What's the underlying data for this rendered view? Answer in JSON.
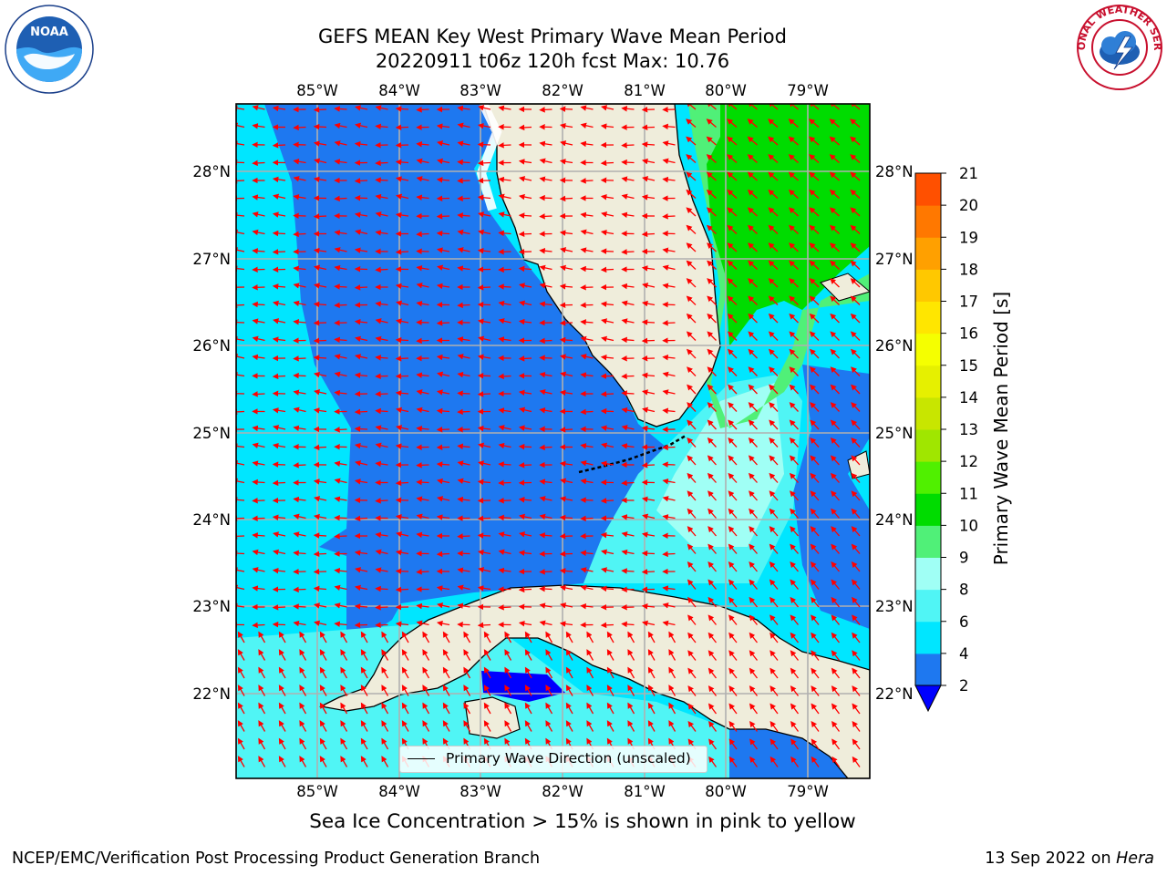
{
  "title": {
    "line1": "GEFS MEAN Key West Primary Wave Mean Period",
    "line2": "20220911 t06z 120h fcst   Max: 10.76"
  },
  "map": {
    "lon_labels": [
      "85°W",
      "84°W",
      "83°W",
      "82°W",
      "81°W",
      "80°W",
      "79°W"
    ],
    "lat_labels": [
      "28°N",
      "27°N",
      "26°N",
      "25°N",
      "24°N",
      "23°N",
      "22°N"
    ],
    "lon_range": [
      -86.0,
      -78.25
    ],
    "lat_range": [
      21.05,
      28.78
    ],
    "colors": {
      "land": "#EFEDDB",
      "band_2_4": "#1E78F0",
      "band_4_6": "#00E6FF",
      "band_6_8": "#50F5F5",
      "band_8_9": "#A0FFF5",
      "band_9_10": "#50F078",
      "band_10_11": "#00DC00",
      "band_lt_2": "#0000FF",
      "arrow": "#FF0000",
      "grid": "#B0B0B0"
    },
    "field_description": "Primary Wave Mean Period",
    "arrow_direction": "Primary Wave Direction (unscaled)"
  },
  "legend": {
    "label": "Primary Wave Direction (unscaled)"
  },
  "colorbar": {
    "label": "Primary Wave Mean Period [s]",
    "ticks": [
      "2",
      "4",
      "6",
      "8",
      "9",
      "10",
      "11",
      "12",
      "13",
      "14",
      "15",
      "16",
      "17",
      "18",
      "19",
      "20",
      "21"
    ],
    "colors": [
      "#1E78F0",
      "#00E6FF",
      "#50F5F5",
      "#A0FFF5",
      "#50F078",
      "#00DC00",
      "#50F000",
      "#A0E600",
      "#C8E600",
      "#E6F000",
      "#F5FF00",
      "#FFE600",
      "#FFC800",
      "#FFA000",
      "#FF7800",
      "#FF5000",
      "#FF1E00"
    ],
    "extend_color": "#0000FF"
  },
  "footer": {
    "sea_ice_note": "Sea Ice Concentration > 15% is shown in pink to yellow",
    "left": "NCEP/EMC/Verification Post Processing Product Generation Branch",
    "right_date": "13 Sep 2022 on",
    "right_host": "Hera"
  },
  "logos": {
    "left": "NOAA",
    "right": "NATIONAL WEATHER SERVICE"
  }
}
